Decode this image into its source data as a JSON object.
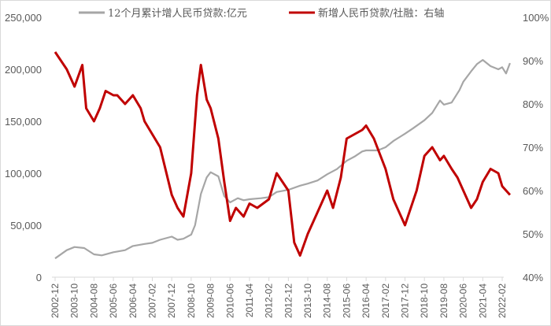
{
  "chart_data": {
    "type": "line",
    "title": "",
    "legend_position": "top",
    "grid": false,
    "y_left": {
      "label": "",
      "range": [
        0,
        250000
      ],
      "ticks": [
        "0",
        "50,000",
        "100,000",
        "150,000",
        "200,000",
        "250,000"
      ]
    },
    "y_right": {
      "label": "",
      "range": [
        40,
        100
      ],
      "ticks": [
        "40%",
        "50%",
        "60%",
        "70%",
        "80%",
        "90%",
        "100%"
      ]
    },
    "x_ticks": [
      "2002-12",
      "2003-10",
      "2004-08",
      "2005-06",
      "2006-04",
      "2007-02",
      "2007-12",
      "2008-10",
      "2009-08",
      "2010-06",
      "2011-04",
      "2012-02",
      "2012-12",
      "2013-10",
      "2014-08",
      "2015-06",
      "2016-04",
      "2017-02",
      "2017-12",
      "2018-10",
      "2019-08",
      "2020-06",
      "2021-04",
      "2022-02"
    ],
    "series": [
      {
        "name": "12个月累计增人民币贷款:亿元",
        "axis": "left",
        "color": "#a6a6a6",
        "x": [
          "2002-12",
          "2003-06",
          "2003-10",
          "2004-03",
          "2004-08",
          "2004-12",
          "2005-06",
          "2005-12",
          "2006-04",
          "2006-10",
          "2007-02",
          "2007-06",
          "2007-12",
          "2008-03",
          "2008-06",
          "2008-10",
          "2008-12",
          "2009-03",
          "2009-06",
          "2009-08",
          "2009-12",
          "2010-03",
          "2010-06",
          "2010-10",
          "2011-01",
          "2011-04",
          "2011-10",
          "2012-02",
          "2012-06",
          "2012-12",
          "2013-06",
          "2013-10",
          "2014-03",
          "2014-08",
          "2015-01",
          "2015-06",
          "2015-10",
          "2016-02",
          "2016-04",
          "2016-10",
          "2017-02",
          "2017-06",
          "2017-12",
          "2018-04",
          "2018-10",
          "2019-02",
          "2019-06",
          "2019-08",
          "2019-12",
          "2020-04",
          "2020-06",
          "2020-10",
          "2021-01",
          "2021-04",
          "2021-08",
          "2021-12",
          "2022-02",
          "2022-04",
          "2022-06"
        ],
        "values": [
          18000,
          26000,
          29000,
          28000,
          22000,
          21000,
          24000,
          26000,
          30000,
          32000,
          33000,
          36000,
          39000,
          36000,
          37000,
          41000,
          50000,
          80000,
          96000,
          101000,
          97000,
          78000,
          72000,
          76000,
          74000,
          75000,
          76000,
          77000,
          82000,
          84000,
          88000,
          90000,
          93000,
          99000,
          104000,
          112000,
          116000,
          121000,
          122000,
          122000,
          125000,
          131000,
          138000,
          143000,
          151000,
          158000,
          170000,
          166000,
          168000,
          180000,
          188000,
          198000,
          205000,
          209000,
          203000,
          200000,
          202000,
          196000,
          206000
        ]
      },
      {
        "name": "新增人民币贷款/社融：右轴",
        "axis": "right",
        "color": "#c00000",
        "x": [
          "2002-12",
          "2003-03",
          "2003-06",
          "2003-10",
          "2004-02",
          "2004-04",
          "2004-08",
          "2004-11",
          "2005-02",
          "2005-06",
          "2005-08",
          "2005-12",
          "2006-04",
          "2006-08",
          "2006-10",
          "2007-02",
          "2007-06",
          "2007-12",
          "2008-03",
          "2008-06",
          "2008-10",
          "2009-01",
          "2009-03",
          "2009-06",
          "2009-08",
          "2009-12",
          "2010-03",
          "2010-06",
          "2010-09",
          "2011-01",
          "2011-04",
          "2011-08",
          "2012-02",
          "2012-06",
          "2012-12",
          "2013-03",
          "2013-06",
          "2013-10",
          "2014-03",
          "2014-08",
          "2014-11",
          "2015-03",
          "2015-06",
          "2015-10",
          "2016-02",
          "2016-04",
          "2016-08",
          "2017-02",
          "2017-06",
          "2017-12",
          "2018-03",
          "2018-06",
          "2018-10",
          "2019-02",
          "2019-06",
          "2019-08",
          "2019-12",
          "2020-03",
          "2020-06",
          "2020-10",
          "2021-01",
          "2021-04",
          "2021-08",
          "2021-12",
          "2022-02",
          "2022-06"
        ],
        "values": [
          92,
          90,
          88,
          84,
          89,
          79,
          76,
          79,
          83,
          82,
          82,
          80,
          82,
          79,
          76,
          73,
          70,
          59,
          56,
          54,
          64,
          82,
          89,
          81,
          79,
          72,
          62,
          53,
          56,
          54,
          57,
          56,
          58,
          64,
          60,
          48,
          45,
          50,
          55,
          60,
          56,
          63,
          72,
          73,
          74,
          75,
          72,
          65,
          58,
          52,
          56,
          60,
          68,
          70,
          67,
          68,
          65,
          63,
          60,
          56,
          58,
          62,
          65,
          64,
          61,
          59
        ]
      }
    ]
  },
  "legend": {
    "items": [
      {
        "label": "12个月累计增人民币贷款:亿元",
        "color": "#a6a6a6"
      },
      {
        "label": "新增人民币贷款/社融：右轴",
        "color": "#c00000"
      }
    ]
  }
}
